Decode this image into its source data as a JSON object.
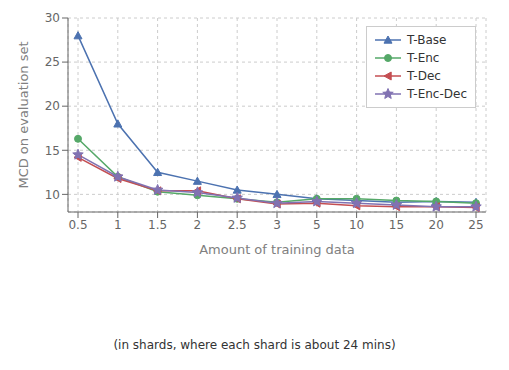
{
  "chart_data": {
    "type": "line",
    "x_label": "Amount of training data",
    "y_label": "MCD on evaluation set",
    "annotations": [
      "(in shards, where each shard is about 24 mins)"
    ],
    "categories": [
      "0.5",
      "1",
      "1.5",
      "2",
      "2.5",
      "3",
      "5",
      "10",
      "15",
      "20",
      "25"
    ],
    "series": [
      {
        "name": "T-Base",
        "color": "#4c72b0",
        "marker": "triangle",
        "values": [
          28.0,
          18.0,
          12.5,
          11.5,
          10.5,
          10.0,
          9.5,
          9.3,
          9.1,
          9.2,
          9.1
        ]
      },
      {
        "name": "T-Enc",
        "color": "#55a868",
        "marker": "circle",
        "values": [
          16.3,
          12.0,
          10.3,
          9.9,
          9.5,
          9.1,
          9.5,
          9.5,
          9.3,
          9.2,
          9.0
        ]
      },
      {
        "name": "T-Dec",
        "color": "#c44e52",
        "marker": "triangle-left",
        "values": [
          14.2,
          11.8,
          10.4,
          10.4,
          9.5,
          8.9,
          9.0,
          8.7,
          8.6,
          8.6,
          8.5
        ]
      },
      {
        "name": "T-Enc-Dec",
        "color": "#8172b2",
        "marker": "star",
        "values": [
          14.5,
          12.0,
          10.5,
          10.2,
          9.6,
          9.0,
          9.2,
          9.0,
          8.8,
          8.6,
          8.6
        ]
      }
    ],
    "ylim": [
      8,
      30
    ],
    "yticks": [
      10,
      15,
      20,
      25,
      30
    ],
    "grid": true,
    "legend": "upper right"
  }
}
